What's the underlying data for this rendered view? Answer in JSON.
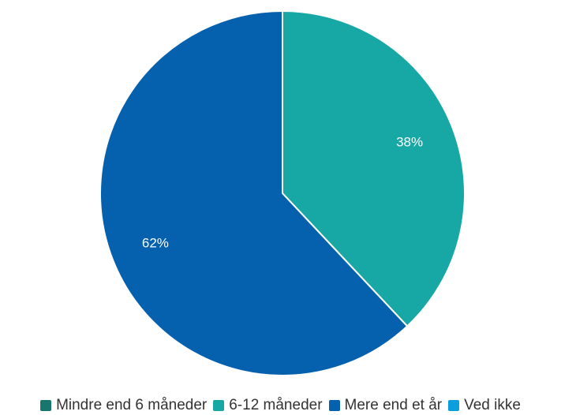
{
  "chart_data": {
    "type": "pie",
    "title": "",
    "categories": [
      "Mindre end 6 måneder",
      "6-12 måneder",
      "Mere end et år",
      "Ved ikke"
    ],
    "values": [
      0,
      38,
      62,
      0
    ],
    "value_labels": [
      "",
      "38%",
      "62%",
      ""
    ],
    "colors": [
      "#17776e",
      "#17a8a6",
      "#0560ae",
      "#0b9ede"
    ],
    "legend_position": "bottom",
    "start_angle": "top",
    "direction": "clockwise"
  }
}
